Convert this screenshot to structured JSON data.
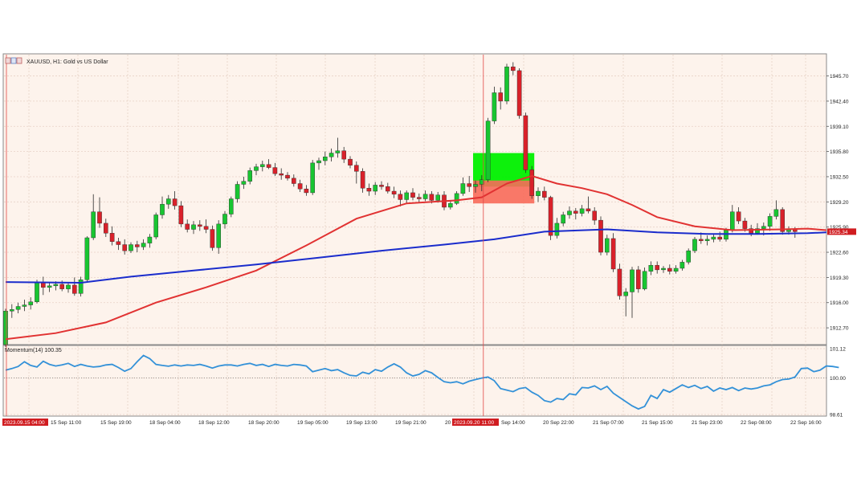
{
  "header": {
    "symbol_title": "XAUUSD, H1: Gold vs US Dollar",
    "icon": "chart-window-icon"
  },
  "colors": {
    "background": "#fdf3ec",
    "grid": "#e8d2c6",
    "bull": "#18c531",
    "bear": "#d9212a",
    "ma_red": "#e13232",
    "ma_blue": "#1a2ccc",
    "momentum": "#3391d8",
    "crosshair": "#e24848",
    "box_green": "#00f000",
    "box_red": "#f86a5a"
  },
  "price_axis": {
    "labels": [
      "1945.70",
      "1942.40",
      "1939.10",
      "1935.80",
      "1932.50",
      "1929.20",
      "1925.90",
      "1922.60",
      "1919.30",
      "1916.00",
      "1912.70"
    ],
    "current_price_label": "1925.34"
  },
  "momentum_panel": {
    "title": "Momentum(14) 100.35",
    "labels": [
      "101.12",
      "100.00",
      "98.61"
    ]
  },
  "time_axis": {
    "labels": [
      "15 Sep 11:00",
      "15 Sep 19:00",
      "18 Sep 04:00",
      "18 Sep 12:00",
      "18 Sep 20:00",
      "19 Sep 05:00",
      "19 Sep 13:00",
      "19 Sep 21:00",
      "20",
      "Sep 14:00",
      "20 Sep 22:00",
      "21 Sep 07:00",
      "21 Sep 15:00",
      "21 Sep 23:00",
      "22 Sep 08:00",
      "22 Sep 16:00"
    ],
    "highlight_left": "2023.09.15 04:00",
    "highlight_mid": "2023.09.20 11:00"
  },
  "chart_data": {
    "type": "candlestick",
    "symbol": "XAUUSD",
    "timeframe": "H1",
    "ylim": [
      1910.5,
      1948.6
    ],
    "candles": [
      [
        1910.5,
        1915.2,
        1910.2,
        1914.9
      ],
      [
        1914.9,
        1915.8,
        1914.0,
        1915.1
      ],
      [
        1915.1,
        1916.0,
        1914.6,
        1915.5
      ],
      [
        1915.5,
        1916.4,
        1914.9,
        1915.7
      ],
      [
        1915.7,
        1916.7,
        1915.1,
        1916.1
      ],
      [
        1916.1,
        1919.0,
        1915.9,
        1918.6
      ],
      [
        1918.6,
        1919.4,
        1917.0,
        1918.0
      ],
      [
        1918.0,
        1918.6,
        1917.4,
        1918.2
      ],
      [
        1918.2,
        1918.8,
        1917.6,
        1918.4
      ],
      [
        1918.4,
        1918.9,
        1917.5,
        1917.8
      ],
      [
        1917.8,
        1918.7,
        1917.3,
        1918.3
      ],
      [
        1918.3,
        1919.3,
        1916.9,
        1917.2
      ],
      [
        1917.2,
        1919.4,
        1916.8,
        1919.0
      ],
      [
        1919.0,
        1924.7,
        1918.8,
        1924.5
      ],
      [
        1924.5,
        1930.2,
        1924.2,
        1927.9
      ],
      [
        1927.9,
        1929.8,
        1925.8,
        1926.4
      ],
      [
        1926.4,
        1927.0,
        1924.6,
        1925.1
      ],
      [
        1925.1,
        1926.0,
        1923.5,
        1924.0
      ],
      [
        1924.0,
        1924.5,
        1922.9,
        1923.6
      ],
      [
        1923.6,
        1924.3,
        1922.3,
        1922.8
      ],
      [
        1922.8,
        1923.9,
        1922.5,
        1923.6
      ],
      [
        1923.6,
        1924.1,
        1922.6,
        1923.3
      ],
      [
        1923.3,
        1924.3,
        1922.9,
        1923.8
      ],
      [
        1923.8,
        1925.0,
        1923.2,
        1924.6
      ],
      [
        1924.6,
        1927.8,
        1924.3,
        1927.5
      ],
      [
        1927.5,
        1929.9,
        1927.0,
        1928.9
      ],
      [
        1928.9,
        1930.1,
        1928.3,
        1929.6
      ],
      [
        1929.6,
        1930.6,
        1928.2,
        1928.7
      ],
      [
        1928.7,
        1929.3,
        1925.9,
        1926.3
      ],
      [
        1926.3,
        1926.9,
        1925.2,
        1925.6
      ],
      [
        1925.6,
        1926.7,
        1925.0,
        1926.2
      ],
      [
        1926.2,
        1926.8,
        1925.4,
        1926.0
      ],
      [
        1926.0,
        1926.9,
        1925.1,
        1925.6
      ],
      [
        1925.6,
        1926.1,
        1922.8,
        1923.2
      ],
      [
        1923.2,
        1926.8,
        1922.4,
        1926.3
      ],
      [
        1926.3,
        1928.0,
        1925.7,
        1927.6
      ],
      [
        1927.6,
        1929.9,
        1927.2,
        1929.6
      ],
      [
        1929.6,
        1931.9,
        1929.1,
        1931.5
      ],
      [
        1931.5,
        1932.5,
        1930.9,
        1931.9
      ],
      [
        1931.9,
        1933.7,
        1931.5,
        1933.3
      ],
      [
        1933.3,
        1934.2,
        1932.7,
        1933.8
      ],
      [
        1933.8,
        1934.6,
        1933.2,
        1934.1
      ],
      [
        1934.1,
        1934.8,
        1933.5,
        1933.7
      ],
      [
        1933.7,
        1934.3,
        1932.6,
        1932.9
      ],
      [
        1932.9,
        1933.6,
        1932.1,
        1932.7
      ],
      [
        1932.7,
        1933.1,
        1932.0,
        1932.3
      ],
      [
        1932.3,
        1932.8,
        1931.2,
        1931.6
      ],
      [
        1931.6,
        1932.1,
        1930.5,
        1930.9
      ],
      [
        1930.9,
        1931.4,
        1930.0,
        1930.4
      ],
      [
        1930.4,
        1934.7,
        1930.1,
        1934.3
      ],
      [
        1934.3,
        1935.0,
        1933.4,
        1934.6
      ],
      [
        1934.6,
        1935.8,
        1934.0,
        1935.1
      ],
      [
        1935.1,
        1936.2,
        1934.5,
        1935.6
      ],
      [
        1935.6,
        1937.6,
        1935.0,
        1935.9
      ],
      [
        1935.9,
        1936.4,
        1934.3,
        1934.8
      ],
      [
        1934.8,
        1935.2,
        1933.6,
        1934.0
      ],
      [
        1934.0,
        1934.5,
        1931.6,
        1933.2
      ],
      [
        1933.2,
        1933.6,
        1930.4,
        1931.0
      ],
      [
        1931.0,
        1931.6,
        1930.0,
        1930.6
      ],
      [
        1930.6,
        1931.8,
        1930.1,
        1931.4
      ],
      [
        1931.4,
        1931.9,
        1930.8,
        1931.2
      ],
      [
        1931.2,
        1931.7,
        1930.3,
        1930.6
      ],
      [
        1930.6,
        1931.2,
        1929.7,
        1930.2
      ],
      [
        1930.2,
        1930.7,
        1928.6,
        1929.5
      ],
      [
        1929.5,
        1930.7,
        1929.0,
        1930.4
      ],
      [
        1930.4,
        1931.0,
        1929.4,
        1929.8
      ],
      [
        1929.8,
        1930.3,
        1929.1,
        1929.6
      ],
      [
        1929.6,
        1930.7,
        1929.3,
        1930.2
      ],
      [
        1930.2,
        1930.6,
        1929.0,
        1929.4
      ],
      [
        1929.4,
        1930.5,
        1929.1,
        1930.1
      ],
      [
        1930.1,
        1930.6,
        1928.1,
        1928.5
      ],
      [
        1928.5,
        1929.4,
        1928.2,
        1929.0
      ],
      [
        1929.0,
        1930.6,
        1928.8,
        1930.3
      ],
      [
        1930.3,
        1932.4,
        1930.0,
        1931.6
      ],
      [
        1931.6,
        1932.6,
        1930.5,
        1931.2
      ],
      [
        1931.2,
        1932.0,
        1930.4,
        1931.5
      ],
      [
        1931.5,
        1932.7,
        1930.6,
        1932.1
      ],
      [
        1932.1,
        1940.2,
        1931.8,
        1939.8
      ],
      [
        1939.8,
        1944.3,
        1939.4,
        1943.5
      ],
      [
        1943.5,
        1944.2,
        1941.3,
        1942.4
      ],
      [
        1942.4,
        1947.3,
        1942.0,
        1946.9
      ],
      [
        1946.9,
        1947.5,
        1945.8,
        1946.4
      ],
      [
        1946.4,
        1946.7,
        1940.1,
        1940.5
      ],
      [
        1940.5,
        1940.9,
        1933.0,
        1933.4
      ],
      [
        1933.4,
        1933.9,
        1929.6,
        1930.0
      ],
      [
        1930.0,
        1931.1,
        1929.2,
        1930.6
      ],
      [
        1930.6,
        1931.2,
        1929.4,
        1929.8
      ],
      [
        1929.8,
        1930.0,
        1924.2,
        1924.8
      ],
      [
        1924.8,
        1927.1,
        1924.4,
        1926.4
      ],
      [
        1926.4,
        1927.9,
        1926.0,
        1927.5
      ],
      [
        1927.5,
        1928.6,
        1927.0,
        1928.0
      ],
      [
        1928.0,
        1928.4,
        1926.9,
        1927.7
      ],
      [
        1927.7,
        1928.8,
        1927.3,
        1928.3
      ],
      [
        1928.3,
        1929.9,
        1927.7,
        1928.0
      ],
      [
        1928.0,
        1928.5,
        1926.2,
        1926.8
      ],
      [
        1926.8,
        1927.3,
        1922.2,
        1922.6
      ],
      [
        1922.6,
        1924.9,
        1922.2,
        1924.4
      ],
      [
        1924.4,
        1925.1,
        1920.0,
        1920.4
      ],
      [
        1920.4,
        1921.1,
        1916.4,
        1916.9
      ],
      [
        1916.9,
        1917.9,
        1914.2,
        1917.4
      ],
      [
        1917.4,
        1920.7,
        1914.0,
        1920.3
      ],
      [
        1920.3,
        1920.8,
        1917.3,
        1917.8
      ],
      [
        1917.8,
        1920.6,
        1917.6,
        1920.1
      ],
      [
        1920.1,
        1921.4,
        1919.6,
        1920.9
      ],
      [
        1920.9,
        1921.4,
        1919.8,
        1920.3
      ],
      [
        1920.3,
        1920.8,
        1919.9,
        1920.5
      ],
      [
        1920.5,
        1921.0,
        1919.7,
        1920.1
      ],
      [
        1920.1,
        1920.9,
        1919.8,
        1920.5
      ],
      [
        1920.5,
        1921.6,
        1920.2,
        1921.3
      ],
      [
        1921.3,
        1923.1,
        1921.0,
        1922.8
      ],
      [
        1922.8,
        1924.6,
        1922.5,
        1924.3
      ],
      [
        1924.3,
        1925.2,
        1923.7,
        1924.1
      ],
      [
        1924.1,
        1924.8,
        1923.5,
        1924.3
      ],
      [
        1924.3,
        1925.0,
        1923.9,
        1924.6
      ],
      [
        1924.6,
        1925.3,
        1924.0,
        1924.3
      ],
      [
        1924.3,
        1925.8,
        1924.0,
        1925.5
      ],
      [
        1925.5,
        1928.8,
        1925.2,
        1927.9
      ],
      [
        1927.9,
        1928.5,
        1926.3,
        1926.7
      ],
      [
        1926.7,
        1927.1,
        1925.3,
        1925.7
      ],
      [
        1925.7,
        1926.2,
        1924.7,
        1925.1
      ],
      [
        1925.1,
        1926.4,
        1924.9,
        1925.7
      ],
      [
        1925.7,
        1926.5,
        1924.8,
        1926.0
      ],
      [
        1926.0,
        1927.7,
        1925.4,
        1927.3
      ],
      [
        1927.3,
        1929.4,
        1926.9,
        1928.2
      ],
      [
        1928.2,
        1928.5,
        1924.9,
        1925.3
      ],
      [
        1925.3,
        1926.0,
        1924.9,
        1925.6
      ],
      [
        1925.6,
        1925.9,
        1924.5,
        1925.3
      ]
    ],
    "moving_averages": [
      {
        "color": "red",
        "points": [
          [
            0,
            1911.2
          ],
          [
            8,
            1912.0
          ],
          [
            16,
            1913.4
          ],
          [
            24,
            1916.0
          ],
          [
            32,
            1918.0
          ],
          [
            40,
            1920.2
          ],
          [
            48,
            1923.5
          ],
          [
            56,
            1927.0
          ],
          [
            64,
            1929.0
          ],
          [
            72,
            1929.4
          ],
          [
            76,
            1929.8
          ],
          [
            80,
            1931.6
          ],
          [
            84,
            1932.6
          ],
          [
            88,
            1931.6
          ],
          [
            92,
            1931.0
          ],
          [
            96,
            1930.2
          ],
          [
            100,
            1928.8
          ],
          [
            104,
            1927.2
          ],
          [
            110,
            1926.0
          ],
          [
            116,
            1925.5
          ],
          [
            124,
            1925.6
          ],
          [
            128,
            1925.7
          ],
          [
            131,
            1925.5
          ]
        ]
      },
      {
        "color": "blue",
        "points": [
          [
            0,
            1918.7
          ],
          [
            12,
            1918.6
          ],
          [
            20,
            1919.4
          ],
          [
            30,
            1920.2
          ],
          [
            40,
            1921.0
          ],
          [
            50,
            1921.9
          ],
          [
            60,
            1922.8
          ],
          [
            70,
            1923.6
          ],
          [
            78,
            1924.3
          ],
          [
            86,
            1925.3
          ],
          [
            96,
            1925.6
          ],
          [
            104,
            1925.2
          ],
          [
            112,
            1925.0
          ],
          [
            120,
            1925.0
          ],
          [
            128,
            1925.1
          ],
          [
            131,
            1925.2
          ]
        ]
      }
    ],
    "zones": [
      {
        "color": "green",
        "x_start": 75,
        "x_end": 84,
        "y_top": 1935.6,
        "y_bottom": 1931.2
      },
      {
        "color": "red",
        "x_start": 75,
        "x_end": 84,
        "y_top": 1932.0,
        "y_bottom": 1929.0
      }
    ],
    "crosshair_index": 76,
    "momentum": {
      "name": "Momentum(14)",
      "last_value": 100.35,
      "ylim": [
        98.61,
        101.12
      ],
      "values": [
        100.3,
        100.36,
        100.44,
        100.62,
        100.48,
        100.42,
        100.64,
        100.52,
        100.46,
        100.5,
        100.56,
        100.44,
        100.52,
        100.46,
        100.42,
        100.44,
        100.5,
        100.52,
        100.4,
        100.26,
        100.36,
        100.62,
        100.86,
        100.74,
        100.52,
        100.48,
        100.45,
        100.5,
        100.46,
        100.5,
        100.48,
        100.52,
        100.46,
        100.38,
        100.46,
        100.5,
        100.5,
        100.46,
        100.52,
        100.56,
        100.48,
        100.52,
        100.44,
        100.52,
        100.48,
        100.46,
        100.52,
        100.5,
        100.46,
        100.24,
        100.3,
        100.36,
        100.28,
        100.32,
        100.2,
        100.1,
        100.08,
        100.22,
        100.16,
        100.32,
        100.26,
        100.42,
        100.54,
        100.42,
        100.2,
        100.08,
        100.14,
        100.28,
        100.2,
        100.02,
        99.86,
        99.82,
        99.86,
        99.78,
        99.88,
        99.94,
        100.0,
        100.04,
        99.9,
        99.6,
        99.54,
        99.48,
        99.6,
        99.64,
        99.46,
        99.34,
        99.14,
        99.08,
        99.22,
        99.18,
        99.4,
        99.36,
        99.64,
        99.62,
        99.7,
        99.56,
        99.68,
        99.42,
        99.26,
        99.1,
        98.94,
        98.82,
        98.92,
        99.34,
        99.22,
        99.56,
        99.46,
        99.6,
        99.74,
        99.64,
        99.72,
        99.6,
        99.68,
        99.5,
        99.62,
        99.56,
        99.64,
        99.52,
        99.62,
        99.58,
        99.62,
        99.7,
        99.74,
        99.86,
        99.94,
        99.96,
        100.04,
        100.36,
        100.38,
        100.24,
        100.3,
        100.46,
        100.44,
        100.4
      ]
    }
  }
}
